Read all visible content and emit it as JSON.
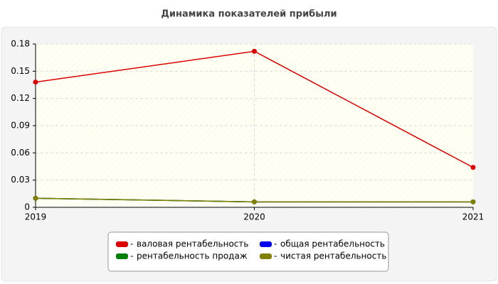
{
  "chart_data": {
    "type": "line",
    "title": "Динамика показателей прибыли",
    "categories": [
      "2019",
      "2020",
      "2021"
    ],
    "series": [
      {
        "name": "валовая рентабельность",
        "color": "#dd0000",
        "values": [
          0.138,
          0.172,
          0.044
        ]
      },
      {
        "name": "общая рентабельность",
        "color": "#0000ee",
        "values": [
          0.01,
          0.006,
          0.006
        ]
      },
      {
        "name": "рентабельность продаж",
        "color": "#008000",
        "values": [
          0.01,
          0.006,
          0.006
        ]
      },
      {
        "name": "чистая рентабельность",
        "color": "#808000",
        "values": [
          0.01,
          0.006,
          0.006
        ]
      }
    ],
    "ylim": [
      0,
      0.18
    ],
    "yticks": [
      0,
      0.03,
      0.06,
      0.09,
      0.12,
      0.15,
      0.18
    ],
    "grid": true
  }
}
